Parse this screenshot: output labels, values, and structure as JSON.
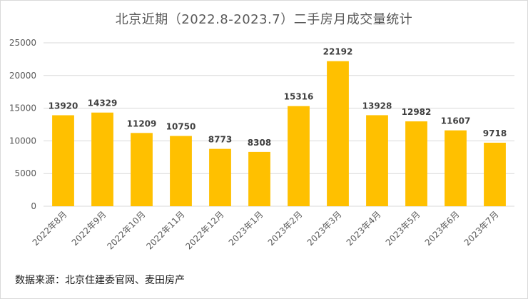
{
  "chart_data": {
    "type": "bar",
    "title": "北京近期（2022.8-2023.7）二手房月成交量统计",
    "source": "数据来源：北京住建委官网、麦田房产",
    "categories": [
      "2022年8月",
      "2022年9月",
      "2022年10月",
      "2022年11月",
      "2022年12月",
      "2023年1月",
      "2023年2月",
      "2023年3月",
      "2023年4月",
      "2023年5月",
      "2023年6月",
      "2023年7月"
    ],
    "values": [
      13920,
      14329,
      11209,
      10750,
      8773,
      8308,
      15316,
      22192,
      13928,
      12982,
      11607,
      9718
    ],
    "data_labels": [
      "13920",
      "14329",
      "11209",
      "10750",
      "8773",
      "8308",
      "15316",
      "22192",
      "13928",
      "12982",
      "11607",
      "9718"
    ],
    "y_ticks": [
      "0",
      "5000",
      "10000",
      "15000",
      "20000",
      "25000"
    ],
    "ylim": [
      0,
      25000
    ],
    "grid": true,
    "legend": "none",
    "bar_color": "#FFC000",
    "grid_color": "#d9d9d9"
  }
}
